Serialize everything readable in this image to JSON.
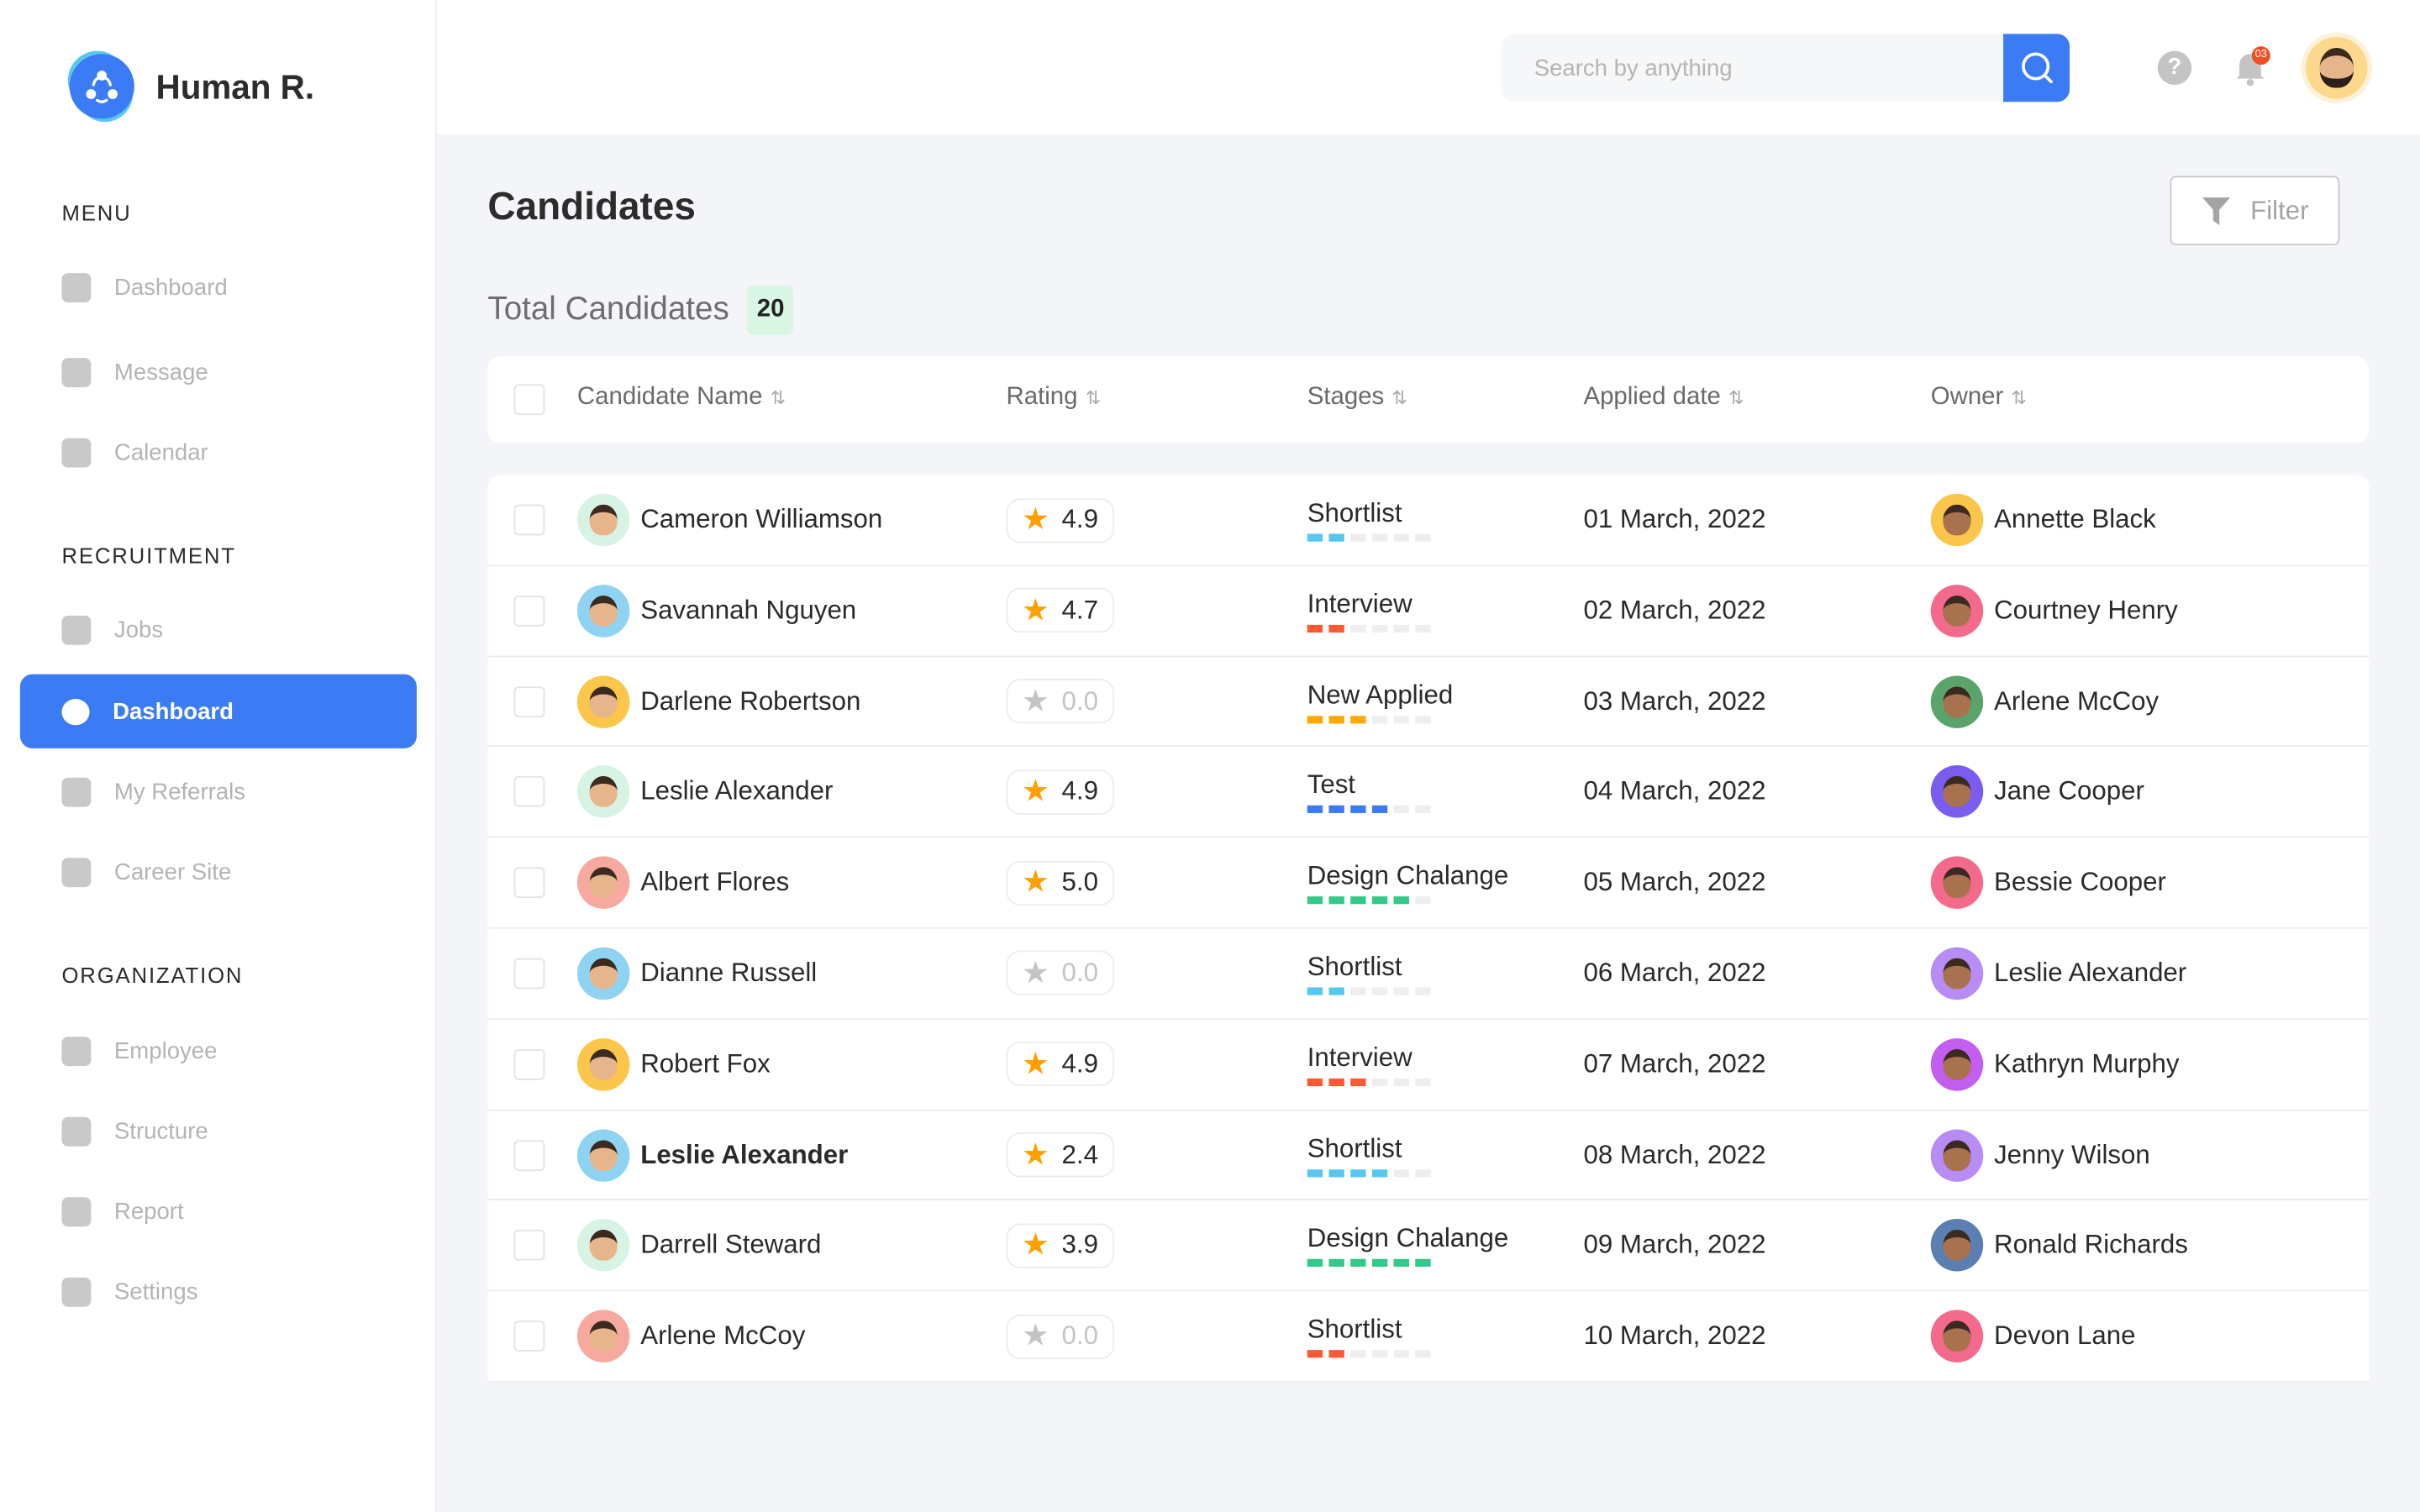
{
  "brand": "Human R.",
  "sidebar": {
    "sections": [
      {
        "title": "MENU",
        "items": [
          "Dashboard",
          "Message",
          "Calendar"
        ]
      },
      {
        "title": "RECRUITMENT",
        "items": [
          "Jobs",
          "Dashboard",
          "My Referrals",
          "Career Site"
        ]
      },
      {
        "title": "ORGANIZATION",
        "items": [
          "Employee",
          "Structure",
          "Report",
          "Settings"
        ]
      }
    ],
    "active": "Dashboard"
  },
  "topbar": {
    "search_placeholder": "Search by anything",
    "notification_count": "03",
    "help": "?"
  },
  "page": {
    "title": "Candidates",
    "filter_label": "Filter",
    "total_label": "Total Candidates",
    "total_count": "20"
  },
  "table": {
    "columns": [
      "Candidate Name",
      "Rating",
      "Stages",
      "Applied date",
      "Owner"
    ],
    "rows": [
      {
        "name": "Cameron Williamson",
        "rating": "4.9",
        "stage": "Shortlist",
        "progress": 2,
        "stage_color": "#56c8f0",
        "date": "01 March, 2022",
        "owner": "Annette Black",
        "av": "#d7f3e3",
        "oav": "#fbc64a"
      },
      {
        "name": "Savannah Nguyen",
        "rating": "4.7",
        "stage": "Interview",
        "progress": 2,
        "stage_color": "#fd5a33",
        "date": "02 March, 2022",
        "owner": "Courtney Henry",
        "av": "#8fd3f2",
        "oav": "#f36a8c"
      },
      {
        "name": "Darlene Robertson",
        "rating": "0.0",
        "stage": "New Applied",
        "progress": 3,
        "stage_color": "#ffa800",
        "date": "03 March, 2022",
        "owner": "Arlene McCoy",
        "av": "#fbc64a",
        "oav": "#5aa36a"
      },
      {
        "name": "Leslie Alexander",
        "rating": "4.9",
        "stage": "Test",
        "progress": 4,
        "stage_color": "#3b7cf5",
        "date": "04 March, 2022",
        "owner": "Jane Cooper",
        "av": "#d7f3e3",
        "oav": "#7a5cf0"
      },
      {
        "name": "Albert Flores",
        "rating": "5.0",
        "stage": "Design Chalange",
        "progress": 5,
        "stage_color": "#33c98a",
        "date": "05 March, 2022",
        "owner": "Bessie Cooper",
        "av": "#f7a9a0",
        "oav": "#f36a8c"
      },
      {
        "name": "Dianne Russell",
        "rating": "0.0",
        "stage": "Shortlist",
        "progress": 2,
        "stage_color": "#56c8f0",
        "date": "06 March, 2022",
        "owner": "Leslie Alexander",
        "av": "#8fd3f2",
        "oav": "#b78cf5"
      },
      {
        "name": "Robert Fox",
        "rating": "4.9",
        "stage": "Interview",
        "progress": 3,
        "stage_color": "#fd5a33",
        "date": "07 March, 2022",
        "owner": "Kathryn Murphy",
        "av": "#fbc64a",
        "oav": "#c35ef0"
      },
      {
        "name": "Leslie Alexander",
        "rating": "2.4",
        "stage": "Shortlist",
        "progress": 4,
        "stage_color": "#56c8f0",
        "date": "08 March, 2022",
        "owner": "Jenny Wilson",
        "av": "#8fd3f2",
        "oav": "#b78cf5",
        "bold": true
      },
      {
        "name": "Darrell Steward",
        "rating": "3.9",
        "stage": "Design Chalange",
        "progress": 6,
        "stage_color": "#33c98a",
        "date": "09 March, 2022",
        "owner": "Ronald Richards",
        "av": "#d7f3e3",
        "oav": "#5a7fb0"
      },
      {
        "name": "Arlene McCoy",
        "rating": "0.0",
        "stage": "Shortlist",
        "progress": 2,
        "stage_color": "#fd5a33",
        "date": "10 March, 2022",
        "owner": "Devon Lane",
        "av": "#f7a9a0",
        "oav": "#f36a8c"
      }
    ]
  },
  "colors": {
    "accent": "#3b7cf5",
    "star": "#ffa000",
    "star_empty": "#c4c4c4"
  }
}
